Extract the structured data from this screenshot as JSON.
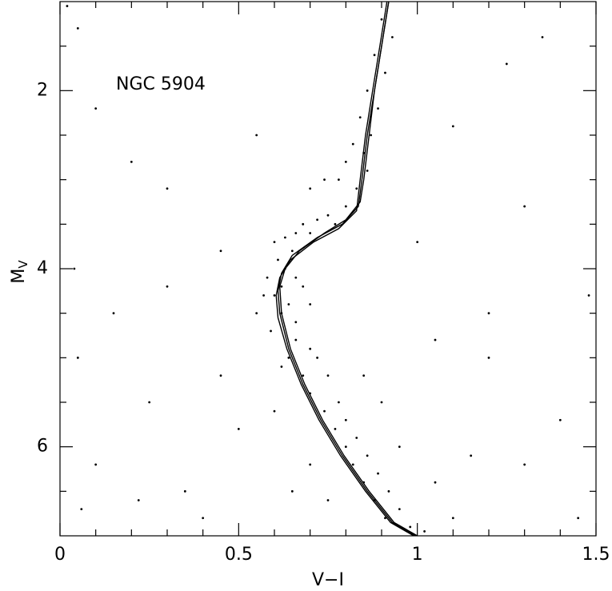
{
  "chart_data": {
    "type": "scatter",
    "annotation": "NGC 5904",
    "xlabel": "V−I",
    "ylabel": {
      "text": "M",
      "subscript": "V"
    },
    "xlim": [
      0,
      1.5
    ],
    "ylim": [
      7.0,
      1.0
    ],
    "xticks": [
      0,
      0.5,
      1,
      1.5
    ],
    "xminorticks": [
      0.1,
      0.2,
      0.3,
      0.4,
      0.6,
      0.7,
      0.8,
      0.9,
      1.1,
      1.2,
      1.3,
      1.4
    ],
    "yticks": [
      2,
      4,
      6
    ],
    "yminorticks": [
      1.5,
      2.5,
      3,
      3.5,
      4.5,
      5,
      5.5,
      6.5
    ],
    "color": "#000000",
    "points": {
      "x": [
        0.9,
        0.93,
        0.88,
        0.91,
        0.86,
        0.89,
        0.84,
        0.87,
        0.82,
        0.85,
        0.8,
        0.86,
        0.78,
        0.83,
        0.74,
        0.7,
        0.8,
        0.75,
        0.72,
        0.68,
        0.66,
        0.63,
        0.7,
        0.77,
        0.6,
        0.65,
        0.61,
        0.63,
        0.58,
        0.62,
        0.66,
        0.6,
        0.64,
        0.57,
        0.68,
        0.62,
        0.66,
        0.55,
        0.7,
        0.59,
        0.66,
        0.7,
        0.64,
        0.72,
        0.68,
        0.75,
        0.7,
        0.78,
        0.74,
        0.8,
        0.77,
        0.83,
        0.8,
        0.86,
        0.82,
        0.89,
        0.85,
        0.92,
        0.88,
        0.95,
        0.91,
        0.98,
        1.02,
        0.62,
        0.6,
        0.9,
        0.95,
        0.7,
        0.75,
        1.05,
        1.1,
        0.65,
        0.85,
        0.02,
        0.05,
        0.1,
        0.2,
        0.3,
        0.15,
        0.05,
        0.25,
        0.1,
        0.35,
        0.3,
        0.45,
        0.5,
        0.4,
        1.2,
        1.3,
        1.35,
        1.25,
        1.1,
        1.4,
        1.3,
        1.45,
        1.2,
        1.0,
        1.05,
        0.55,
        0.45,
        1.15,
        0.22,
        0.06,
        0.04,
        1.48
      ],
      "y": [
        1.2,
        1.4,
        1.6,
        1.8,
        2.0,
        2.2,
        2.3,
        2.5,
        2.6,
        2.7,
        2.8,
        2.9,
        3.0,
        3.1,
        3.0,
        3.1,
        3.3,
        3.4,
        3.45,
        3.5,
        3.6,
        3.65,
        3.6,
        3.5,
        3.7,
        3.8,
        3.9,
        4.0,
        4.1,
        4.2,
        4.1,
        4.3,
        4.4,
        4.3,
        4.2,
        4.5,
        4.6,
        4.5,
        4.4,
        4.7,
        4.8,
        4.9,
        5.0,
        5.0,
        5.2,
        5.2,
        5.4,
        5.5,
        5.6,
        5.7,
        5.8,
        5.9,
        6.0,
        6.1,
        6.2,
        6.3,
        6.4,
        6.5,
        6.6,
        6.7,
        6.8,
        6.9,
        6.95,
        5.1,
        5.6,
        5.5,
        6.0,
        6.2,
        6.6,
        6.4,
        6.8,
        6.5,
        5.2,
        1.05,
        1.3,
        2.2,
        2.8,
        3.1,
        4.5,
        5.0,
        5.5,
        6.2,
        6.5,
        4.2,
        3.8,
        5.8,
        6.8,
        4.5,
        3.3,
        1.4,
        1.7,
        2.4,
        5.7,
        6.2,
        6.8,
        5.0,
        3.7,
        4.8,
        2.5,
        5.2,
        6.1,
        6.6,
        6.7,
        4.0,
        4.3
      ]
    },
    "isochrones": [
      {
        "x": [
          0.92,
          0.9,
          0.88,
          0.865,
          0.85,
          0.84,
          0.8,
          0.74,
          0.67,
          0.63,
          0.615,
          0.62,
          0.645,
          0.685,
          0.735,
          0.795,
          0.865,
          0.935,
          1.0
        ],
        "y": [
          1.0,
          1.5,
          2.0,
          2.5,
          3.0,
          3.25,
          3.45,
          3.6,
          3.8,
          4.0,
          4.2,
          4.5,
          4.9,
          5.3,
          5.7,
          6.1,
          6.5,
          6.85,
          7.0
        ]
      },
      {
        "x": [
          0.92,
          0.9,
          0.88,
          0.86,
          0.845,
          0.835,
          0.79,
          0.72,
          0.65,
          0.62,
          0.61,
          0.615,
          0.64,
          0.68,
          0.73,
          0.79,
          0.86,
          0.93,
          0.995
        ],
        "y": [
          1.0,
          1.5,
          2.0,
          2.5,
          3.0,
          3.3,
          3.5,
          3.65,
          3.85,
          4.05,
          4.25,
          4.5,
          4.9,
          5.3,
          5.7,
          6.1,
          6.5,
          6.85,
          7.0
        ]
      },
      {
        "x": [
          0.915,
          0.895,
          0.875,
          0.855,
          0.84,
          0.83,
          0.78,
          0.71,
          0.645,
          0.615,
          0.605,
          0.61,
          0.635,
          0.675,
          0.725,
          0.785,
          0.855,
          0.925,
          0.99
        ],
        "y": [
          1.0,
          1.5,
          2.0,
          2.5,
          3.0,
          3.35,
          3.55,
          3.7,
          3.9,
          4.1,
          4.3,
          4.55,
          4.9,
          5.3,
          5.7,
          6.1,
          6.5,
          6.85,
          7.0
        ]
      }
    ]
  }
}
